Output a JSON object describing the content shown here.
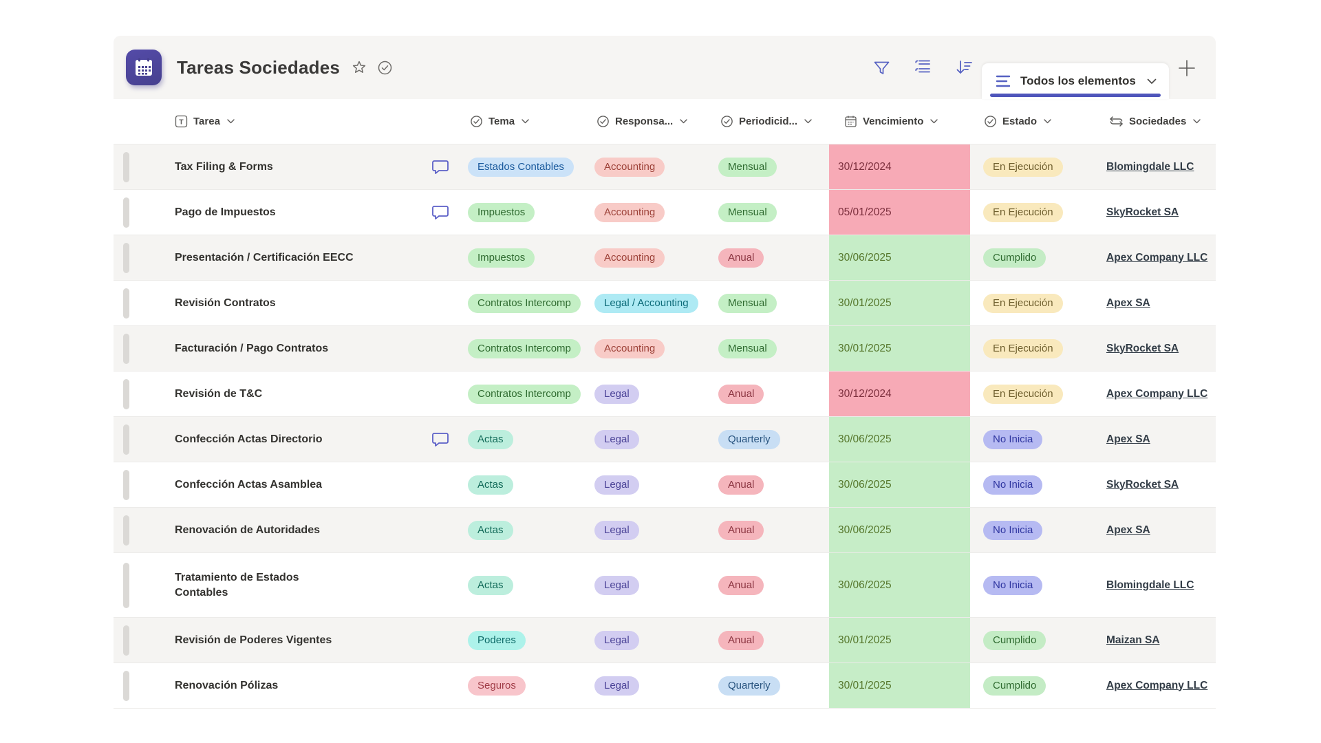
{
  "header": {
    "title": "Tareas Sociedades",
    "app_icon": "calendar-app-icon",
    "title_icons": [
      "star-icon",
      "check-circle-icon"
    ],
    "toolbar_icons": [
      "filter-icon",
      "group-by-icon",
      "sort-icon"
    ],
    "view_tab": {
      "icon": "list-view-icon",
      "label": "Todos los elementos",
      "chevron": "chevron-down-icon"
    },
    "add_view_icon": "plus-icon"
  },
  "table": {
    "columns": [
      {
        "id": "tarea",
        "label": "Tarea",
        "icon": "text-field-icon"
      },
      {
        "id": "tema",
        "label": "Tema",
        "icon": "choice-icon"
      },
      {
        "id": "responsable",
        "label": "Responsa...",
        "icon": "choice-icon"
      },
      {
        "id": "periodicidad",
        "label": "Periodicid...",
        "icon": "choice-icon"
      },
      {
        "id": "vencimiento",
        "label": "Vencimiento",
        "icon": "date-icon"
      },
      {
        "id": "estado",
        "label": "Estado",
        "icon": "choice-icon"
      },
      {
        "id": "sociedades",
        "label": "Sociedades",
        "icon": "lookup-icon"
      }
    ],
    "rows": [
      {
        "tarea": "Tax Filing & Forms",
        "comment": true,
        "tema": {
          "label": "Estados Contables",
          "color": "blue"
        },
        "responsable": {
          "label": "Accounting",
          "color": "red"
        },
        "periodicidad": {
          "label": "Mensual",
          "color": "green"
        },
        "vencimiento": {
          "date": "30/12/2024",
          "state": "overdue"
        },
        "estado": {
          "label": "En Ejecución",
          "color": "amber"
        },
        "sociedad": "Blomingdale LLC"
      },
      {
        "tarea": "Pago de Impuestos",
        "comment": true,
        "tema": {
          "label": "Impuestos",
          "color": "green"
        },
        "responsable": {
          "label": "Accounting",
          "color": "red"
        },
        "periodicidad": {
          "label": "Mensual",
          "color": "green"
        },
        "vencimiento": {
          "date": "05/01/2025",
          "state": "overdue"
        },
        "estado": {
          "label": "En Ejecución",
          "color": "amber"
        },
        "sociedad": "SkyRocket SA"
      },
      {
        "tarea": "Presentación / Certificación EECC",
        "comment": false,
        "tema": {
          "label": "Impuestos",
          "color": "green"
        },
        "responsable": {
          "label": "Accounting",
          "color": "red"
        },
        "periodicidad": {
          "label": "Anual",
          "color": "redpill"
        },
        "vencimiento": {
          "date": "30/06/2025",
          "state": "ok"
        },
        "estado": {
          "label": "Cumplido",
          "color": "greenpill"
        },
        "sociedad": "Apex Company LLC"
      },
      {
        "tarea": "Revisión Contratos",
        "comment": false,
        "tema": {
          "label": "Contratos Intercomp",
          "color": "green"
        },
        "responsable": {
          "label": "Legal / Accounting",
          "color": "cyan"
        },
        "periodicidad": {
          "label": "Mensual",
          "color": "green"
        },
        "vencimiento": {
          "date": "30/01/2025",
          "state": "ok"
        },
        "estado": {
          "label": "En Ejecución",
          "color": "amber"
        },
        "sociedad": "Apex SA"
      },
      {
        "tarea": "Facturación / Pago Contratos",
        "comment": false,
        "tema": {
          "label": "Contratos Intercomp",
          "color": "green"
        },
        "responsable": {
          "label": "Accounting",
          "color": "red"
        },
        "periodicidad": {
          "label": "Mensual",
          "color": "green"
        },
        "vencimiento": {
          "date": "30/01/2025",
          "state": "ok"
        },
        "estado": {
          "label": "En Ejecución",
          "color": "amber"
        },
        "sociedad": "SkyRocket SA"
      },
      {
        "tarea": "Revisión de T&C",
        "comment": false,
        "tema": {
          "label": "Contratos Intercomp",
          "color": "green"
        },
        "responsable": {
          "label": "Legal",
          "color": "purple"
        },
        "periodicidad": {
          "label": "Anual",
          "color": "redpill"
        },
        "vencimiento": {
          "date": "30/12/2024",
          "state": "overdue"
        },
        "estado": {
          "label": "En Ejecución",
          "color": "amber"
        },
        "sociedad": "Apex Company LLC"
      },
      {
        "tarea": "Confección Actas Directorio",
        "comment": true,
        "tema": {
          "label": "Actas",
          "color": "teal"
        },
        "responsable": {
          "label": "Legal",
          "color": "purple"
        },
        "periodicidad": {
          "label": "Quarterly",
          "color": "bluepill"
        },
        "vencimiento": {
          "date": "30/06/2025",
          "state": "ok"
        },
        "estado": {
          "label": "No Inicia",
          "color": "periwinkle"
        },
        "sociedad": "Apex SA"
      },
      {
        "tarea": "Confección Actas Asamblea",
        "comment": false,
        "tema": {
          "label": "Actas",
          "color": "teal"
        },
        "responsable": {
          "label": "Legal",
          "color": "purple"
        },
        "periodicidad": {
          "label": "Anual",
          "color": "redpill"
        },
        "vencimiento": {
          "date": "30/06/2025",
          "state": "ok"
        },
        "estado": {
          "label": "No Inicia",
          "color": "periwinkle"
        },
        "sociedad": "SkyRocket SA"
      },
      {
        "tarea": "Renovación de Autoridades",
        "comment": false,
        "tema": {
          "label": "Actas",
          "color": "teal"
        },
        "responsable": {
          "label": "Legal",
          "color": "purple"
        },
        "periodicidad": {
          "label": "Anual",
          "color": "redpill"
        },
        "vencimiento": {
          "date": "30/06/2025",
          "state": "ok"
        },
        "estado": {
          "label": "No Inicia",
          "color": "periwinkle"
        },
        "sociedad": "Apex SA"
      },
      {
        "tarea": "Tratamiento de Estados\nContables",
        "comment": false,
        "tall": true,
        "tema": {
          "label": "Actas",
          "color": "teal"
        },
        "responsable": {
          "label": "Legal",
          "color": "purple"
        },
        "periodicidad": {
          "label": "Anual",
          "color": "redpill"
        },
        "vencimiento": {
          "date": "30/06/2025",
          "state": "ok"
        },
        "estado": {
          "label": "No Inicia",
          "color": "periwinkle"
        },
        "sociedad": "Blomingdale LLC"
      },
      {
        "tarea": "Revisión de Poderes Vigentes",
        "comment": false,
        "tema": {
          "label": "Poderes",
          "color": "aqua"
        },
        "responsable": {
          "label": "Legal",
          "color": "purple"
        },
        "periodicidad": {
          "label": "Anual",
          "color": "redpill"
        },
        "vencimiento": {
          "date": "30/01/2025",
          "state": "ok"
        },
        "estado": {
          "label": "Cumplido",
          "color": "greenpill"
        },
        "sociedad": "Maizan SA"
      },
      {
        "tarea": "Renovación Pólizas",
        "comment": false,
        "tema": {
          "label": "Seguros",
          "color": "pink"
        },
        "responsable": {
          "label": "Legal",
          "color": "purple"
        },
        "periodicidad": {
          "label": "Quarterly",
          "color": "bluepill"
        },
        "vencimiento": {
          "date": "30/01/2025",
          "state": "ok"
        },
        "estado": {
          "label": "Cumplido",
          "color": "greenpill"
        },
        "sociedad": "Apex Company LLC"
      }
    ]
  },
  "palette": {
    "accent": "#4e55bb",
    "icon_blue": "#5661c2",
    "band_bg": "#f6f5f3",
    "alt_row_bg": "#f5f4f2",
    "pills": {
      "blue": {
        "bg": "#cbe2f8",
        "fg": "#19599c"
      },
      "green": {
        "bg": "#c4efc5",
        "fg": "#2f6b30"
      },
      "teal": {
        "bg": "#bceedd",
        "fg": "#116a58"
      },
      "aqua": {
        "bg": "#adf2ea",
        "fg": "#0c6a67"
      },
      "pink": {
        "bg": "#f8c5cb",
        "fg": "#a03c47"
      },
      "red": {
        "bg": "#f8cbc7",
        "fg": "#9c4037"
      },
      "cyan": {
        "bg": "#aeeaf4",
        "fg": "#0b6a78"
      },
      "purple": {
        "bg": "#d2cdf1",
        "fg": "#4b4397"
      },
      "redpill": {
        "bg": "#f5b5bc",
        "fg": "#8c3642"
      },
      "bluepill": {
        "bg": "#c8def4",
        "fg": "#2a5580"
      },
      "amber": {
        "bg": "#f9e9bd",
        "fg": "#6e5e2d"
      },
      "greenpill": {
        "bg": "#c4ecc5",
        "fg": "#2f6b30"
      },
      "periwinkle": {
        "bg": "#b6baf2",
        "fg": "#2e35a0"
      }
    },
    "date_cells": {
      "overdue": {
        "bg": "#f7aab6",
        "fg": "#7c2f3d"
      },
      "ok": {
        "bg": "#c6edc7",
        "fg": "#56772c"
      }
    }
  }
}
